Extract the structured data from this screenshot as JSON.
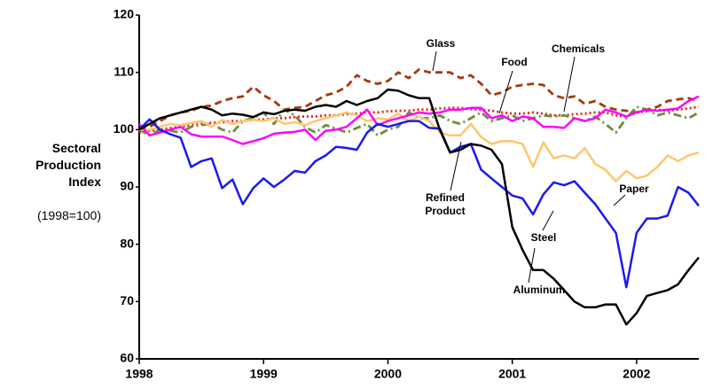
{
  "chart_data": {
    "type": "line",
    "ylabel": "Sectoral Production Index",
    "ylabel_note": "(1998=100)",
    "xlim": [
      1998,
      2002.5
    ],
    "xticks": [
      1998,
      1999,
      2000,
      2001,
      2002
    ],
    "ylim": [
      60,
      120
    ],
    "yticks": [
      60,
      70,
      80,
      90,
      100,
      110,
      120
    ],
    "grid": false,
    "x": [
      1998,
      1998.083,
      1998.167,
      1998.25,
      1998.333,
      1998.417,
      1998.5,
      1998.583,
      1998.667,
      1998.75,
      1998.833,
      1998.917,
      1999,
      1999.083,
      1999.167,
      1999.25,
      1999.333,
      1999.417,
      1999.5,
      1999.583,
      1999.667,
      1999.75,
      1999.833,
      1999.917,
      2000,
      2000.083,
      2000.167,
      2000.25,
      2000.333,
      2000.417,
      2000.5,
      2000.583,
      2000.667,
      2000.75,
      2000.833,
      2000.917,
      2001,
      2001.083,
      2001.167,
      2001.25,
      2001.333,
      2001.417,
      2001.5,
      2001.583,
      2001.667,
      2001.75,
      2001.833,
      2001.917,
      2002,
      2002.083,
      2002.167,
      2002.25,
      2002.333,
      2002.417,
      2002.5
    ],
    "series": [
      {
        "name": "Glass",
        "color": "#a33a0f",
        "dash": "dashed",
        "values": [
          100,
          100.5,
          101.5,
          102.5,
          103,
          103.3,
          104,
          104.2,
          105,
          105.5,
          105.8,
          107.5,
          106,
          105,
          103.5,
          103.8,
          104,
          105,
          106,
          106.5,
          107.5,
          109.5,
          108.5,
          108,
          108.5,
          110,
          109,
          110.5,
          110,
          110,
          110,
          109,
          109.5,
          108,
          106,
          106.5,
          107.5,
          107.8,
          108,
          107.8,
          106,
          105.5,
          105.8,
          104.5,
          105,
          104,
          103.5,
          103.3,
          103,
          103.5,
          104,
          105,
          105.3,
          105.5,
          105
        ]
      },
      {
        "name": "Food",
        "color": "#e8221f",
        "dash": "dotted",
        "values": [
          99.5,
          99.8,
          100,
          100.3,
          100.5,
          100.8,
          101,
          101.2,
          101.3,
          101.5,
          101.5,
          101.7,
          101.8,
          102,
          102,
          102.2,
          102.3,
          102.3,
          102.5,
          102.5,
          102.7,
          102.8,
          103,
          103,
          103.2,
          103.3,
          103.3,
          103.5,
          103.5,
          103.7,
          103.8,
          103.8,
          103.6,
          103.5,
          103.3,
          103,
          102.8,
          102.8,
          103,
          102.8,
          102.5,
          102.5,
          102.7,
          102.8,
          103,
          103,
          102.5,
          102.3,
          103,
          103.2,
          103.5,
          103.3,
          103.5,
          103.7,
          104
        ]
      },
      {
        "name": "Chemicals",
        "color": "#6b8e3a",
        "dash": "dashdot",
        "values": [
          100,
          99,
          100,
          99.8,
          99.5,
          100.5,
          100.8,
          101,
          100,
          99.5,
          101.5,
          102,
          103,
          101,
          103.5,
          102.5,
          100.5,
          99.5,
          100.8,
          100.2,
          99.5,
          100.3,
          101,
          99,
          100,
          100.5,
          103,
          102,
          102,
          102.5,
          101.5,
          101,
          102,
          103,
          101.5,
          102,
          102.5,
          101.5,
          102,
          102.5,
          102.3,
          102.5,
          102,
          101.5,
          102.3,
          101,
          99.5,
          102,
          104,
          103.5,
          102.5,
          103,
          102.5,
          102,
          103
        ]
      },
      {
        "name": "Paper",
        "color": "#ffc66e",
        "dash": "solid",
        "values": [
          100,
          100,
          100.5,
          101,
          100.8,
          101.2,
          101.5,
          100.5,
          101.7,
          101,
          101.5,
          101.7,
          101.5,
          102,
          101,
          101.3,
          100.8,
          101.5,
          102,
          102.5,
          103,
          102.5,
          101.5,
          102,
          101.8,
          102.8,
          101.5,
          102.3,
          101.5,
          99.5,
          99,
          99,
          101,
          98.7,
          97.5,
          98,
          98,
          97.5,
          93.5,
          97.8,
          95,
          95.5,
          95,
          96.8,
          94,
          93,
          91,
          92.8,
          91.5,
          92,
          93.5,
          95.5,
          94.5,
          95.5,
          96
        ]
      },
      {
        "name": "Refined Product",
        "color": "#ff00ff",
        "dash": "solid",
        "values": [
          101,
          99,
          99.5,
          100,
          100.5,
          99.2,
          98.8,
          98.8,
          98.8,
          98.2,
          97.5,
          98,
          98.5,
          99.3,
          99.5,
          99.6,
          100,
          98.2,
          99.8,
          100,
          100.5,
          102,
          103.5,
          100.8,
          101.5,
          102,
          102.5,
          103,
          102.8,
          103,
          103.5,
          103.5,
          103.8,
          103.8,
          102,
          102.5,
          101.5,
          102.3,
          102,
          100.5,
          100.5,
          100.3,
          102,
          101.5,
          102,
          103.5,
          103,
          102.3,
          103,
          103.5,
          103.3,
          103.5,
          103.7,
          105,
          105.8
        ]
      },
      {
        "name": "Steel",
        "color": "#1a1aee",
        "dash": "solid",
        "values": [
          100,
          101.8,
          100,
          99.2,
          98.6,
          93.5,
          94.5,
          95,
          89.8,
          91.3,
          87,
          89.8,
          91.5,
          90,
          91.3,
          92.8,
          92.5,
          94.5,
          95.5,
          97,
          96.8,
          96.5,
          99.5,
          101,
          100.5,
          101,
          101.5,
          101.5,
          100.3,
          100.2,
          96,
          97,
          97.5,
          93,
          91.5,
          90,
          88.5,
          88,
          85.2,
          88.7,
          90.8,
          90.3,
          91,
          89,
          87,
          84.5,
          82,
          72.5,
          82,
          84.5,
          84.5,
          85,
          90,
          89,
          86.7
        ]
      },
      {
        "name": "Aluminum",
        "color": "#000000",
        "dash": "solid",
        "values": [
          100,
          101,
          102,
          102.5,
          103,
          103.5,
          104,
          103.5,
          102.5,
          102.8,
          102.6,
          102.2,
          103,
          102.7,
          103.3,
          103.5,
          103.3,
          104,
          104.3,
          104,
          105,
          104.3,
          105,
          105.5,
          107,
          106.8,
          106,
          105.5,
          105.5,
          100,
          96,
          96.5,
          97.5,
          97.2,
          96.5,
          94,
          83,
          79,
          75.5,
          75.5,
          74,
          72,
          70,
          69,
          69,
          69.5,
          69.5,
          66,
          68,
          71,
          71.5,
          72,
          73,
          75.5,
          77.7
        ]
      }
    ]
  }
}
